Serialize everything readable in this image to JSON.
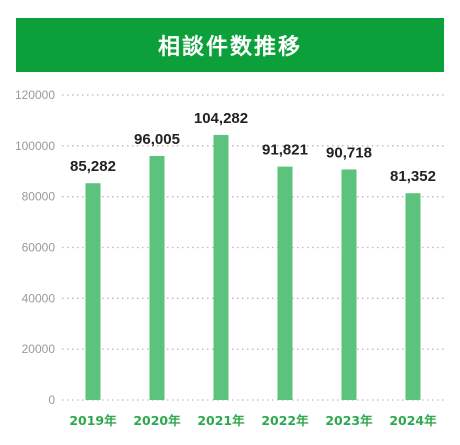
{
  "chart_data": {
    "type": "bar",
    "title": "相談件数推移",
    "categories": [
      "2019年",
      "2020年",
      "2021年",
      "2022年",
      "2023年",
      "2024年"
    ],
    "values": [
      85282,
      96005,
      104282,
      91821,
      90718,
      81352
    ],
    "value_labels": [
      "85,282",
      "96,005",
      "104,282",
      "91,821",
      "90,718",
      "81,352"
    ],
    "y_ticks": [
      "0",
      "20000",
      "40000",
      "60000",
      "80000",
      "100000",
      "120000"
    ],
    "ylim": [
      0,
      120000
    ],
    "xlabel": "",
    "ylabel": "",
    "grid": true,
    "legend": "none"
  },
  "colors": {
    "title_bg": "#0ca03a",
    "bar": "#5cc27c",
    "category_text": "#2ea84f",
    "grid": "#bbbbbb"
  }
}
